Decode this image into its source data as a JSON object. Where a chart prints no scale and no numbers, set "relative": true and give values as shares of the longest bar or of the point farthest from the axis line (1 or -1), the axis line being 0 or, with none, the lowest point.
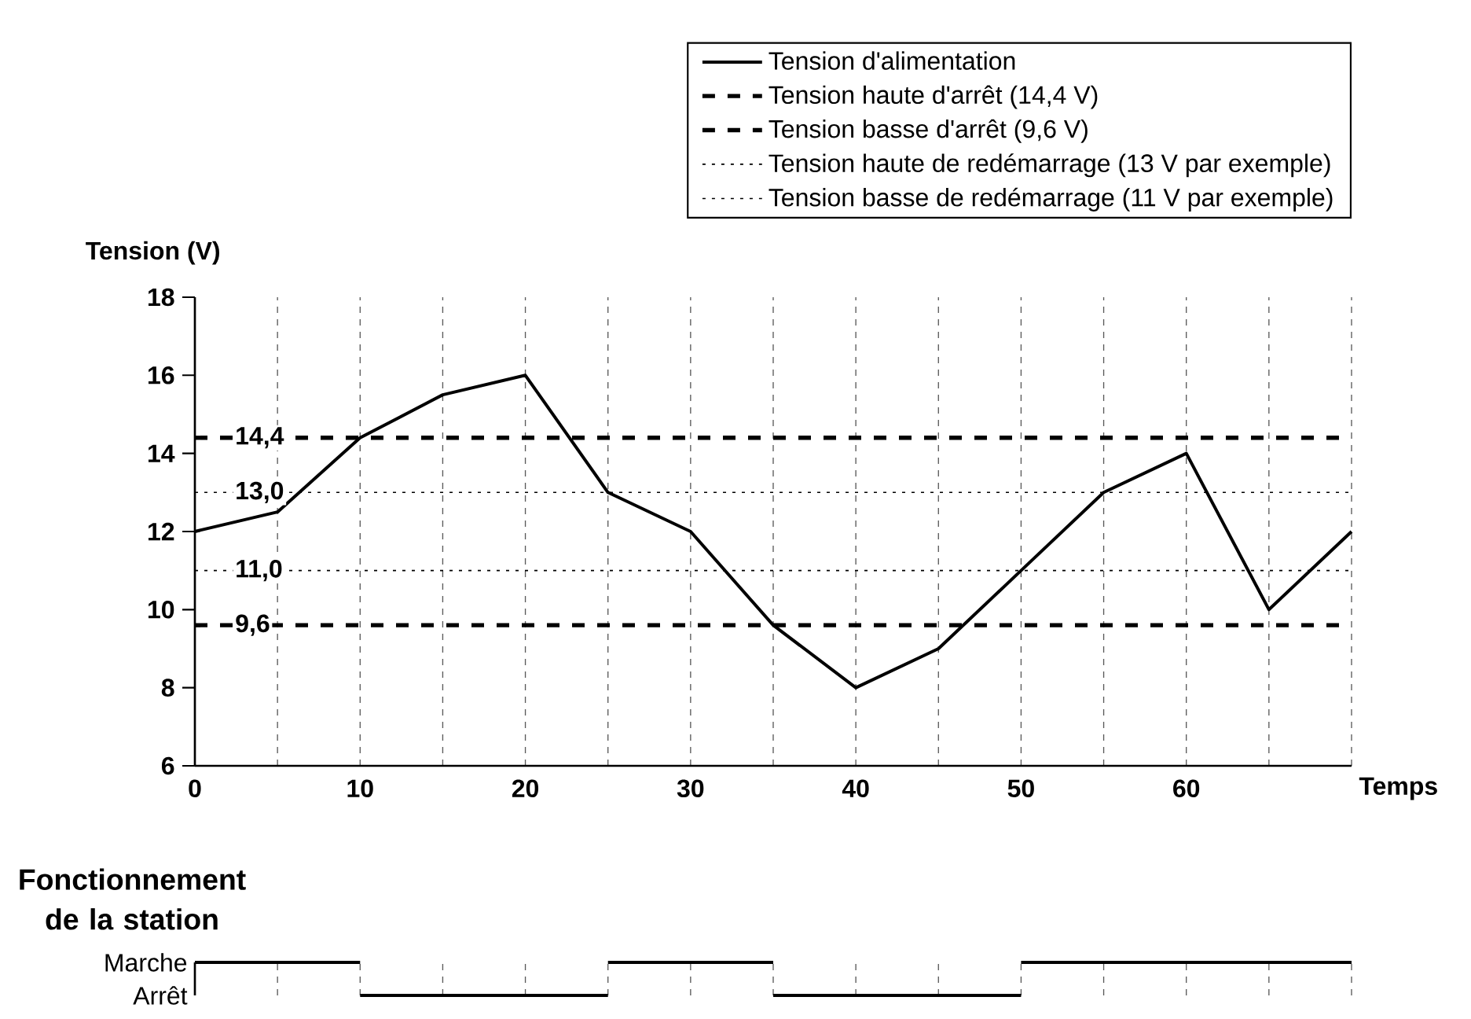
{
  "chart_data": [
    {
      "type": "line",
      "ylabel": "Tension (V)",
      "xlabel": "Temps",
      "xlim": [
        0,
        70
      ],
      "ylim": [
        6,
        18
      ],
      "xticks": [
        0,
        {
          "value": 5,
          "label": null
        },
        10,
        {
          "value": 15,
          "label": null
        },
        20,
        {
          "value": 25,
          "label": null
        },
        30,
        {
          "value": 35,
          "label": null
        },
        40,
        {
          "value": 45,
          "label": null
        },
        50,
        {
          "value": 55,
          "label": null
        },
        60,
        {
          "value": 65,
          "label": null
        },
        {
          "value": 70,
          "label": null
        }
      ],
      "yticks": [
        6,
        8,
        10,
        12,
        14,
        16,
        18
      ],
      "grid": "x",
      "legend": "top right",
      "series": [
        {
          "name": "Tension d'alimentation",
          "color": "#000000",
          "line_style": "solid",
          "x": [
            0,
            5,
            10,
            15,
            20,
            25,
            30,
            35,
            40,
            45,
            50,
            55,
            60,
            65,
            70
          ],
          "values": [
            12,
            12.5,
            14.4,
            15.5,
            16,
            13,
            12,
            9.6,
            8,
            9,
            11,
            13,
            14,
            10,
            12
          ]
        },
        {
          "name": "Tension haute d'arrêt (14,4 V)",
          "color": "#000000",
          "line_style": "dashed",
          "x": [
            0,
            70
          ],
          "values": [
            14.4,
            14.4
          ]
        },
        {
          "name": "Tension basse d'arrêt (9,6 V)",
          "color": "#000000",
          "line_style": "dashed",
          "x": [
            0,
            70
          ],
          "values": [
            9.6,
            9.6
          ]
        },
        {
          "name": "Tension haute de redémarrage (13 V par exemple)",
          "color": "#000000",
          "line_style": "dotted",
          "x": [
            0,
            70
          ],
          "values": [
            13,
            13
          ]
        },
        {
          "name": "Tension basse de redémarrage (11 V par exemple)",
          "color": "#000000",
          "line_style": "dotted",
          "x": [
            0,
            70
          ],
          "values": [
            11,
            11
          ]
        }
      ],
      "annotations": [
        {
          "text": "14,4",
          "y": 14.4
        },
        {
          "text": "13,0",
          "y": 13
        },
        {
          "text": "11,0",
          "y": 11
        },
        {
          "text": "9,6",
          "y": 9.6
        }
      ]
    },
    {
      "type": "step",
      "ylabel": "Fonctionnement de la station",
      "xlim": [
        0,
        70
      ],
      "relative": true,
      "xticks": [
        0,
        5,
        10,
        15,
        20,
        25,
        30,
        35,
        40,
        45,
        50,
        55,
        60,
        65,
        70
      ],
      "tick_labels": false,
      "grid": "x",
      "annotations": [
        "Marche",
        "Arrêt"
      ],
      "x": [
        0,
        10,
        25,
        35,
        50,
        70
      ],
      "values": [
        1,
        0,
        1,
        0,
        1,
        1
      ],
      "color": "#000000"
    }
  ]
}
